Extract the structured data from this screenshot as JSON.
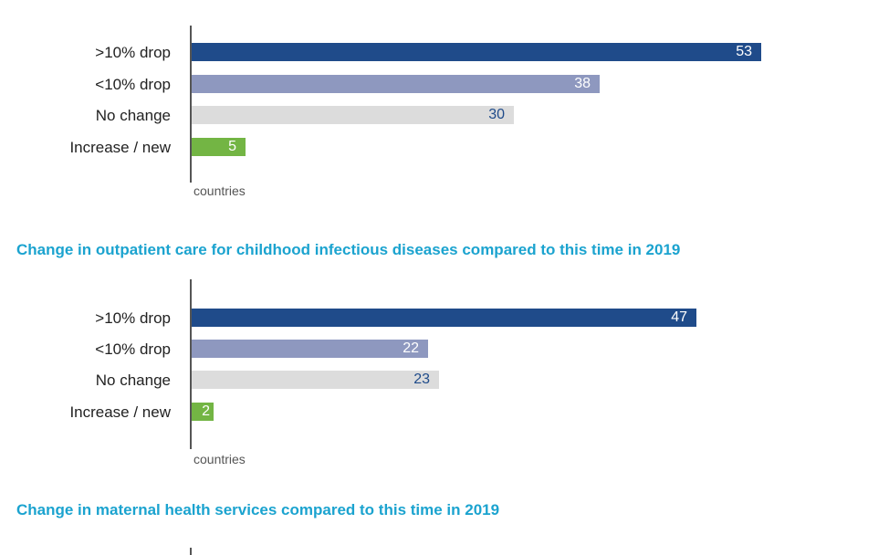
{
  "colors": {
    "title": "#1ba3cf",
    "drop_gt10": "#1f4b8a",
    "drop_lt10": "#8e98bf",
    "no_change": "#dcdcdc",
    "increase": "#73b544",
    "label_dark": "#ffffff",
    "label_light": "#1f4b8a"
  },
  "chart_data": [
    {
      "type": "bar",
      "orientation": "horizontal",
      "title": "",
      "categories": [
        ">10% drop",
        "<10% drop",
        "No change",
        "Increase / new"
      ],
      "values": [
        53,
        38,
        30,
        5
      ],
      "xlabel": "countries",
      "xlim": [
        0,
        56
      ]
    },
    {
      "type": "bar",
      "orientation": "horizontal",
      "title": "Change in outpatient care for childhood infectious diseases compared to this time in 2019",
      "categories": [
        ">10% drop",
        "<10% drop",
        "No change",
        "Increase / new"
      ],
      "values": [
        47,
        22,
        23,
        2
      ],
      "xlabel": "countries",
      "xlim": [
        0,
        56
      ]
    },
    {
      "type": "bar",
      "orientation": "horizontal",
      "title": "Change in maternal health services compared to this time in 2019",
      "categories": [],
      "values": [],
      "xlabel": "",
      "xlim": [
        0,
        56
      ]
    }
  ]
}
